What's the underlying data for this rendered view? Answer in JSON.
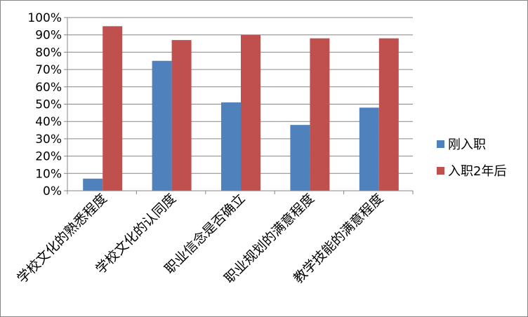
{
  "chart_data": {
    "type": "bar",
    "categories": [
      "学校文化的熟悉程度",
      "学校文化的认同度",
      "职业信念是否确立",
      "职业规划的满意程度",
      "教学技能的满意程度"
    ],
    "series": [
      {
        "name": "刚入职",
        "values": [
          7,
          75,
          51,
          38,
          48
        ],
        "color": "#4F81BD"
      },
      {
        "name": "入职2年后",
        "values": [
          95,
          87,
          90,
          88,
          88
        ],
        "color": "#C0504D"
      }
    ],
    "ylim": [
      0,
      100
    ],
    "yticks": [
      "0%",
      "10%",
      "20%",
      "30%",
      "40%",
      "50%",
      "60%",
      "70%",
      "80%",
      "90%",
      "100%"
    ],
    "grid": true,
    "legend": "right"
  }
}
